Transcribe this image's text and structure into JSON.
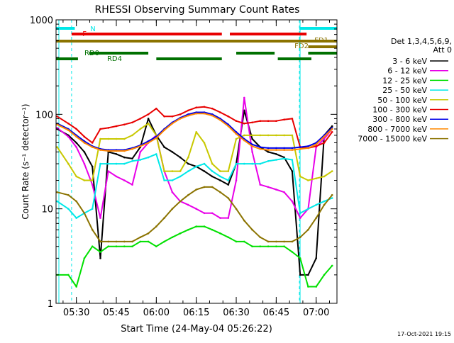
{
  "chart_data": {
    "type": "line",
    "title": "RHESSI Observing Summary Count Rates",
    "xlabel": "Start Time (24-May-04 05:26:22)",
    "ylabel": "Count Rate (s⁻¹ detector⁻¹)",
    "y_scale": "log",
    "ylim": [
      1,
      1000
    ],
    "xlim": [
      5.3728,
      7.13
    ],
    "x_units": "hours UT",
    "x_ticks": [
      {
        "x": 5.5,
        "label": "05:30"
      },
      {
        "x": 5.75,
        "label": "05:45"
      },
      {
        "x": 6.0,
        "label": "06:00"
      },
      {
        "x": 6.25,
        "label": "06:15"
      },
      {
        "x": 6.5,
        "label": "06:30"
      },
      {
        "x": 6.75,
        "label": "06:45"
      },
      {
        "x": 7.0,
        "label": "07:00"
      }
    ],
    "y_ticks": [
      {
        "y": 1,
        "label": "1"
      },
      {
        "y": 10,
        "label": "10"
      },
      {
        "y": 100,
        "label": "100"
      },
      {
        "y": 1000,
        "label": "1000"
      }
    ],
    "legend_header": [
      "Det 1,3,4,5,6,9,",
      "Att 0"
    ],
    "legend_placement": "right",
    "series": [
      {
        "name": "3 - 6 keV",
        "color": "#000000",
        "x": [
          5.38,
          5.45,
          5.5,
          5.55,
          5.6,
          5.65,
          5.7,
          5.75,
          5.8,
          5.85,
          5.9,
          5.95,
          6.0,
          6.05,
          6.1,
          6.15,
          6.2,
          6.25,
          6.3,
          6.35,
          6.4,
          6.45,
          6.5,
          6.55,
          6.6,
          6.65,
          6.7,
          6.75,
          6.8,
          6.85,
          6.9,
          6.95,
          7.0,
          7.05,
          7.1
        ],
        "values": [
          70,
          60,
          50,
          40,
          28,
          3,
          40,
          38,
          35,
          34,
          45,
          90,
          60,
          45,
          40,
          35,
          30,
          28,
          25,
          22,
          20,
          18,
          30,
          110,
          55,
          45,
          40,
          38,
          35,
          25,
          2,
          2,
          3,
          60,
          75
        ]
      },
      {
        "name": "6 - 12 keV",
        "color": "#e800e8",
        "x": [
          5.38,
          5.45,
          5.5,
          5.55,
          5.6,
          5.65,
          5.7,
          5.75,
          5.8,
          5.85,
          5.9,
          5.95,
          6.0,
          6.05,
          6.1,
          6.15,
          6.2,
          6.25,
          6.3,
          6.35,
          6.4,
          6.45,
          6.5,
          6.55,
          6.6,
          6.65,
          6.7,
          6.75,
          6.8,
          6.85,
          6.9,
          6.95,
          7.0,
          7.05,
          7.1
        ],
        "values": [
          72,
          58,
          45,
          30,
          18,
          8,
          25,
          22,
          20,
          18,
          40,
          50,
          60,
          25,
          15,
          12,
          11,
          10,
          9,
          9,
          8,
          8,
          20,
          150,
          40,
          18,
          17,
          16,
          15,
          12,
          8,
          10,
          45,
          55,
          70
        ]
      },
      {
        "name": "12 - 25 keV",
        "color": "#00e000",
        "x": [
          5.38,
          5.45,
          5.5,
          5.55,
          5.6,
          5.65,
          5.7,
          5.75,
          5.8,
          5.85,
          5.9,
          5.95,
          6.0,
          6.05,
          6.1,
          6.15,
          6.2,
          6.25,
          6.3,
          6.35,
          6.4,
          6.45,
          6.5,
          6.55,
          6.6,
          6.65,
          6.7,
          6.75,
          6.8,
          6.85,
          6.9,
          6.95,
          7.0,
          7.05,
          7.1
        ],
        "values": [
          2,
          2,
          1.5,
          3,
          4,
          3.5,
          4,
          4,
          4,
          4,
          4.5,
          4.5,
          4,
          4.5,
          5,
          5.5,
          6,
          6.5,
          6.5,
          6,
          5.5,
          5,
          4.5,
          4.5,
          4,
          4,
          4,
          4,
          4,
          3.5,
          3,
          1.5,
          1.5,
          2,
          2.5
        ]
      },
      {
        "name": "25 - 50 keV",
        "color": "#00e8e8",
        "x": [
          5.38,
          5.45,
          5.5,
          5.55,
          5.6,
          5.65,
          5.7,
          5.75,
          5.8,
          5.85,
          5.9,
          5.95,
          6.0,
          6.05,
          6.1,
          6.15,
          6.2,
          6.25,
          6.3,
          6.35,
          6.4,
          6.45,
          6.5,
          6.55,
          6.6,
          6.65,
          6.7,
          6.75,
          6.8,
          6.85,
          6.9,
          6.95,
          7.0,
          7.05,
          7.1
        ],
        "values": [
          12,
          10,
          8,
          9,
          10,
          30,
          30,
          30,
          30,
          32,
          33,
          35,
          38,
          20,
          20,
          22,
          25,
          28,
          30,
          25,
          22,
          20,
          30,
          30,
          30,
          30,
          32,
          33,
          34,
          33,
          9,
          10,
          11,
          12,
          13
        ]
      },
      {
        "name": "50 - 100 keV",
        "color": "#c8c800",
        "x": [
          5.38,
          5.45,
          5.5,
          5.55,
          5.6,
          5.65,
          5.7,
          5.75,
          5.8,
          5.85,
          5.9,
          5.95,
          6.0,
          6.05,
          6.1,
          6.15,
          6.2,
          6.25,
          6.3,
          6.35,
          6.4,
          6.45,
          6.5,
          6.55,
          6.6,
          6.65,
          6.7,
          6.75,
          6.8,
          6.85,
          6.9,
          6.95,
          7.0,
          7.05,
          7.1
        ],
        "values": [
          45,
          30,
          22,
          20,
          20,
          55,
          55,
          55,
          55,
          60,
          70,
          80,
          60,
          25,
          25,
          25,
          35,
          65,
          50,
          30,
          25,
          25,
          55,
          60,
          60,
          60,
          60,
          60,
          60,
          60,
          22,
          20,
          21,
          22,
          25
        ]
      },
      {
        "name": "100 - 300 keV",
        "color": "#e80000",
        "x": [
          5.38,
          5.45,
          5.5,
          5.55,
          5.6,
          5.65,
          5.7,
          5.75,
          5.8,
          5.85,
          5.9,
          5.95,
          6.0,
          6.05,
          6.1,
          6.15,
          6.2,
          6.25,
          6.3,
          6.35,
          6.4,
          6.45,
          6.5,
          6.55,
          6.6,
          6.65,
          6.7,
          6.75,
          6.8,
          6.85,
          6.9,
          6.95,
          7.0,
          7.05,
          7.1
        ],
        "values": [
          95,
          80,
          70,
          58,
          50,
          70,
          72,
          75,
          78,
          82,
          90,
          100,
          115,
          95,
          95,
          100,
          110,
          118,
          120,
          115,
          105,
          95,
          85,
          80,
          82,
          85,
          85,
          85,
          88,
          90,
          45,
          44,
          46,
          50,
          65
        ]
      },
      {
        "name": "300 - 800 keV",
        "color": "#0000e8",
        "x": [
          5.38,
          5.45,
          5.5,
          5.55,
          5.6,
          5.65,
          5.7,
          5.75,
          5.8,
          5.85,
          5.9,
          5.95,
          6.0,
          6.05,
          6.1,
          6.15,
          6.2,
          6.25,
          6.3,
          6.35,
          6.4,
          6.45,
          6.5,
          6.55,
          6.6,
          6.65,
          6.7,
          6.75,
          6.8,
          6.85,
          6.9,
          6.95,
          7.0,
          7.05,
          7.1
        ],
        "values": [
          80,
          70,
          60,
          52,
          46,
          43,
          42,
          42,
          42,
          44,
          47,
          52,
          58,
          70,
          82,
          92,
          100,
          105,
          105,
          100,
          90,
          78,
          65,
          55,
          48,
          45,
          44,
          44,
          44,
          44,
          45,
          46,
          50,
          60,
          72
        ]
      },
      {
        "name": "800 - 7000 keV",
        "color": "#ff8800",
        "x": [
          5.38,
          5.45,
          5.5,
          5.55,
          5.6,
          5.65,
          5.7,
          5.75,
          5.8,
          5.85,
          5.9,
          5.95,
          6.0,
          6.05,
          6.1,
          6.15,
          6.2,
          6.25,
          6.3,
          6.35,
          6.4,
          6.45,
          6.5,
          6.55,
          6.6,
          6.65,
          6.7,
          6.75,
          6.8,
          6.85,
          6.9,
          6.95,
          7.0,
          7.05,
          7.1
        ],
        "values": [
          78,
          68,
          58,
          50,
          45,
          42,
          41,
          41,
          41,
          43,
          46,
          50,
          56,
          68,
          80,
          90,
          97,
          102,
          102,
          97,
          87,
          75,
          62,
          53,
          46,
          43,
          42,
          42,
          42,
          42,
          43,
          44,
          48,
          58,
          70
        ]
      },
      {
        "name": "7000 - 15000 keV",
        "color": "#8b7300",
        "x": [
          5.38,
          5.45,
          5.5,
          5.55,
          5.6,
          5.65,
          5.7,
          5.75,
          5.8,
          5.85,
          5.9,
          5.95,
          6.0,
          6.05,
          6.1,
          6.15,
          6.2,
          6.25,
          6.3,
          6.35,
          6.4,
          6.45,
          6.5,
          6.55,
          6.6,
          6.65,
          6.7,
          6.75,
          6.8,
          6.85,
          6.9,
          6.95,
          7.0,
          7.05,
          7.1
        ],
        "values": [
          15,
          14,
          12,
          9,
          6,
          4.5,
          4.5,
          4.5,
          4.5,
          4.5,
          5,
          5.5,
          6.5,
          8,
          10,
          12,
          14,
          16,
          17,
          17,
          15,
          13,
          10,
          7.5,
          6,
          5,
          4.5,
          4.5,
          4.5,
          4.5,
          5,
          6,
          8,
          11,
          14
        ]
      }
    ],
    "annotations": [
      {
        "label": "N",
        "color": "#00e8e8",
        "bars": [
          [
            5.3728,
            5.49
          ],
          [
            6.895,
            7.13
          ]
        ],
        "level": 1
      },
      {
        "label": "F",
        "color": "#e80000",
        "bars": [
          [
            5.47,
            6.41
          ],
          [
            6.46,
            6.94
          ]
        ],
        "level": 2
      },
      {
        "label": "FD1",
        "color": "#8b7300",
        "bars": [
          [
            5.3728,
            7.13
          ]
        ],
        "level": 3
      },
      {
        "label": "FD2",
        "color": "#8b7300",
        "bars": [
          [
            6.95,
            7.13
          ]
        ],
        "level": 4
      },
      {
        "label": "RD0",
        "color": "#007000",
        "bars": [
          [
            5.58,
            5.95
          ],
          [
            6.5,
            6.74
          ],
          [
            6.95,
            7.13
          ]
        ],
        "level": 5
      },
      {
        "label": "RD4",
        "color": "#007000",
        "bars": [
          [
            5.3728,
            5.51
          ],
          [
            6.0,
            6.41
          ],
          [
            6.76,
            6.97
          ]
        ],
        "level": 6
      }
    ],
    "vlines": [
      5.47,
      6.895
    ]
  },
  "footer": {
    "date": "17-Oct-2021 19:15"
  }
}
